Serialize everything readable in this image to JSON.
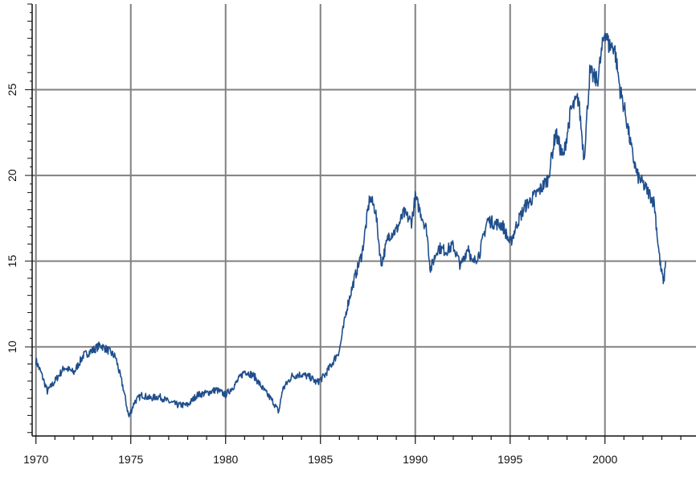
{
  "chart_data": {
    "type": "line",
    "title": "",
    "xlabel": "",
    "ylabel": "",
    "xlim": [
      1969.8,
      2004.8
    ],
    "ylim": [
      4.8,
      30
    ],
    "grid": true,
    "line_color": "#1f4e8c",
    "grid_color": "#808080",
    "x_ticks": [
      1970,
      1975,
      1980,
      1985,
      1990,
      1995,
      2000
    ],
    "y_ticks": [
      10,
      15,
      20,
      25
    ],
    "series": [
      {
        "name": "",
        "x": [
          1970.0,
          1970.3,
          1970.6,
          1971.0,
          1971.5,
          1972.0,
          1972.5,
          1973.0,
          1973.4,
          1973.8,
          1974.2,
          1974.6,
          1974.9,
          1975.2,
          1975.6,
          1976.0,
          1976.5,
          1977.0,
          1977.5,
          1978.0,
          1978.5,
          1979.0,
          1979.5,
          1980.0,
          1980.5,
          1981.0,
          1981.5,
          1982.0,
          1982.5,
          1982.8,
          1983.0,
          1983.5,
          1984.0,
          1984.5,
          1984.8,
          1985.2,
          1985.6,
          1986.0,
          1986.4,
          1986.8,
          1987.2,
          1987.6,
          1987.9,
          1988.2,
          1988.6,
          1989.0,
          1989.4,
          1989.8,
          1990.0,
          1990.3,
          1990.6,
          1990.8,
          1991.2,
          1991.6,
          1992.0,
          1992.4,
          1992.8,
          1993.0,
          1993.4,
          1993.8,
          1994.2,
          1994.6,
          1995.0,
          1995.4,
          1995.8,
          1996.2,
          1996.6,
          1997.0,
          1997.4,
          1997.8,
          1998.2,
          1998.6,
          1998.9,
          1999.2,
          1999.6,
          2000.0,
          2000.2,
          2000.5,
          2000.8,
          2001.1,
          2001.4,
          2001.7,
          2002.0,
          2002.3,
          2002.6,
          2002.8,
          2002.95,
          2003.1,
          2003.2
        ],
        "y": [
          9.2,
          8.4,
          7.4,
          8.0,
          8.8,
          8.5,
          9.5,
          9.8,
          10.1,
          9.8,
          9.4,
          7.6,
          5.9,
          6.8,
          7.2,
          7.0,
          7.1,
          6.8,
          6.6,
          6.6,
          7.2,
          7.3,
          7.5,
          7.2,
          7.8,
          8.6,
          8.3,
          7.5,
          6.8,
          6.2,
          7.5,
          8.3,
          8.4,
          8.2,
          7.9,
          8.3,
          9.0,
          9.8,
          12.3,
          14.0,
          15.5,
          18.7,
          18.0,
          14.8,
          16.5,
          16.8,
          17.8,
          17.3,
          18.7,
          17.8,
          16.8,
          14.5,
          15.8,
          15.6,
          15.9,
          14.7,
          15.9,
          14.8,
          15.5,
          17.4,
          17.2,
          17.1,
          16.0,
          17.3,
          18.2,
          18.7,
          19.2,
          19.8,
          22.5,
          21.0,
          23.8,
          24.5,
          21.0,
          26.0,
          25.5,
          28.5,
          27.6,
          27.5,
          25.0,
          23.5,
          21.5,
          20.0,
          19.5,
          19.0,
          18.4,
          16.0,
          14.5,
          13.8,
          15.0
        ]
      }
    ]
  }
}
